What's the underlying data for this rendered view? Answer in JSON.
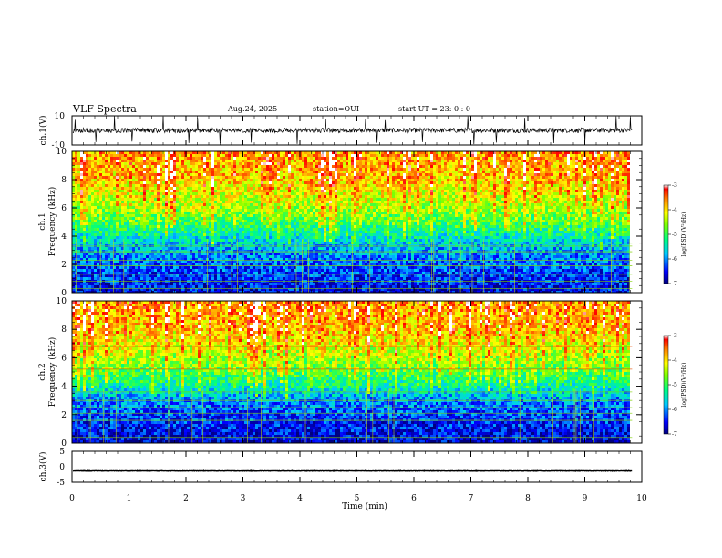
{
  "header": {
    "title": "VLF Spectra",
    "date": "Aug.24, 2025",
    "station": "station=OUI",
    "start": "start  UT =  23: 0  : 0"
  },
  "chart_data": [
    {
      "type": "line",
      "panel": "ch1_waveform",
      "ylabel": "ch.1(V)",
      "ylim": [
        -10,
        10
      ],
      "yticks": [
        "10",
        "-10"
      ],
      "baseline_v": 0,
      "spike_times_min": [
        0.05,
        0.42,
        0.75,
        1.05,
        1.6,
        2.05,
        2.2,
        2.6,
        3.15,
        3.95,
        4.45,
        5.15,
        5.35,
        5.5,
        6.15,
        6.95,
        7.05,
        7.45,
        7.95,
        8.45,
        9.0,
        9.55,
        9.8
      ]
    },
    {
      "type": "heatmap",
      "panel": "ch1_spectrogram",
      "ylabel_line1": "ch.1",
      "ylabel_line2": "Frequency  (kHz)",
      "ylim": [
        0,
        10
      ],
      "yticks": [
        "0",
        "2",
        "4",
        "6",
        "8",
        "10"
      ],
      "colorbar": {
        "label": "log(PSD)(V²/Hz)",
        "range": [
          -7,
          -3
        ],
        "ticks": [
          "-3",
          "-4",
          "-5",
          "-6",
          "-7"
        ]
      },
      "level_by_freq_khz": [
        [
          0,
          -6.6
        ],
        [
          1,
          -6.4
        ],
        [
          2,
          -6.2
        ],
        [
          3,
          -5.9
        ],
        [
          4,
          -5.5
        ],
        [
          5,
          -5.0
        ],
        [
          6,
          -4.6
        ],
        [
          7,
          -4.3
        ],
        [
          8,
          -4.0
        ],
        [
          10,
          -3.8
        ]
      ],
      "persistent_lines_khz": [
        0.3,
        0.8,
        1.3,
        1.9,
        2.3,
        2.9,
        3.3,
        3.5
      ]
    },
    {
      "type": "heatmap",
      "panel": "ch2_spectrogram",
      "ylabel_line1": "ch.2",
      "ylabel_line2": "Frequency  (kHz)",
      "ylim": [
        0,
        10
      ],
      "yticks": [
        "0",
        "2",
        "4",
        "6",
        "8",
        "10"
      ],
      "colorbar": {
        "label": "log(PSD)(V²/Hz)",
        "range": [
          -7,
          -3
        ],
        "ticks": [
          "-3",
          "-4",
          "-5",
          "-6",
          "-7"
        ]
      },
      "level_by_freq_khz": [
        [
          0,
          -6.7
        ],
        [
          1,
          -6.5
        ],
        [
          2,
          -6.3
        ],
        [
          3,
          -6.0
        ],
        [
          4,
          -5.4
        ],
        [
          5,
          -5.0
        ],
        [
          6,
          -4.6
        ],
        [
          7,
          -4.3
        ],
        [
          8,
          -4.0
        ],
        [
          10,
          -3.8
        ]
      ],
      "persistent_lines_khz": [
        0.4,
        1.0,
        1.6,
        2.1,
        2.5,
        3.0,
        3.6,
        5.2,
        6.8
      ]
    },
    {
      "type": "line",
      "panel": "ch3_waveform",
      "ylabel": "ch.3(V)",
      "ylim": [
        -5,
        5
      ],
      "yticks": [
        "5",
        "0",
        "-5"
      ],
      "baseline_v": -1.2
    }
  ],
  "x_axis": {
    "label": "Time  (min)",
    "range": [
      0,
      10
    ],
    "data_end": 9.83,
    "ticks": [
      "0",
      "1",
      "2",
      "3",
      "4",
      "5",
      "6",
      "7",
      "8",
      "9",
      "10"
    ]
  },
  "colors": {
    "spectrum_low": "#00008c",
    "spectrum_high": "#e60000",
    "line": "#000000"
  }
}
